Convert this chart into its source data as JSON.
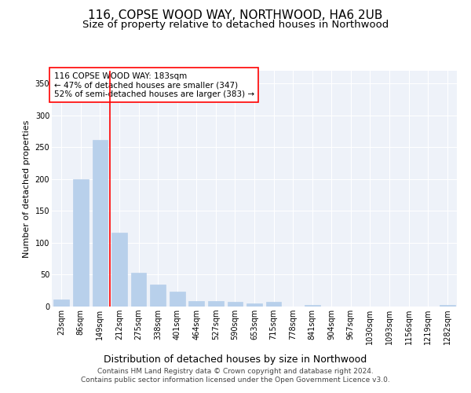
{
  "title_line1": "116, COPSE WOOD WAY, NORTHWOOD, HA6 2UB",
  "title_line2": "Size of property relative to detached houses in Northwood",
  "xlabel": "Distribution of detached houses by size in Northwood",
  "ylabel": "Number of detached properties",
  "bar_labels": [
    "23sqm",
    "86sqm",
    "149sqm",
    "212sqm",
    "275sqm",
    "338sqm",
    "401sqm",
    "464sqm",
    "527sqm",
    "590sqm",
    "653sqm",
    "715sqm",
    "778sqm",
    "841sqm",
    "904sqm",
    "967sqm",
    "1030sqm",
    "1093sqm",
    "1156sqm",
    "1219sqm",
    "1282sqm"
  ],
  "bar_values": [
    11,
    200,
    262,
    116,
    53,
    35,
    23,
    9,
    9,
    7,
    5,
    8,
    0,
    3,
    0,
    0,
    0,
    0,
    0,
    0,
    2
  ],
  "bar_color": "#b8d0eb",
  "bar_edgecolor": "#b8d0eb",
  "vline_x": 2.5,
  "vline_color": "red",
  "ylim": [
    0,
    370
  ],
  "yticks": [
    0,
    50,
    100,
    150,
    200,
    250,
    300,
    350
  ],
  "annotation_title": "116 COPSE WOOD WAY: 183sqm",
  "annotation_line1": "← 47% of detached houses are smaller (347)",
  "annotation_line2": "52% of semi-detached houses are larger (383) →",
  "annotation_box_color": "white",
  "annotation_box_edgecolor": "red",
  "footer_line1": "Contains HM Land Registry data © Crown copyright and database right 2024.",
  "footer_line2": "Contains public sector information licensed under the Open Government Licence v3.0.",
  "background_color": "#eef2f9",
  "grid_color": "white",
  "title1_fontsize": 11,
  "title2_fontsize": 9.5,
  "xlabel_fontsize": 9,
  "ylabel_fontsize": 8,
  "tick_fontsize": 7,
  "annotation_fontsize": 7.5,
  "footer_fontsize": 6.5
}
